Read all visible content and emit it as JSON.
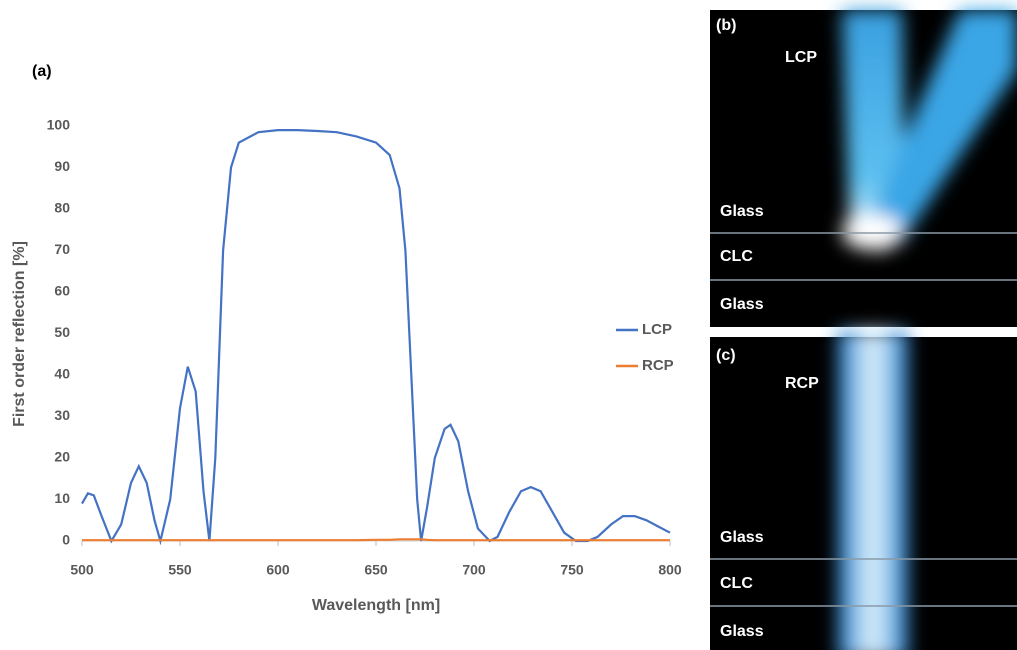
{
  "chart_data": {
    "type": "line",
    "panel_label": "(a)",
    "x_label": "Wavelength [nm]",
    "y_label": "First order reflection [%]",
    "x": [
      500,
      503,
      506,
      510,
      515,
      520,
      525,
      529,
      533,
      537,
      540,
      545,
      550,
      554,
      558,
      562,
      565,
      568,
      572,
      576,
      580,
      590,
      600,
      610,
      620,
      630,
      640,
      650,
      657,
      662,
      665,
      668,
      671,
      673,
      676,
      680,
      685,
      688,
      692,
      697,
      702,
      708,
      712,
      718,
      724,
      729,
      734,
      740,
      746,
      752,
      758,
      763,
      770,
      776,
      782,
      788,
      794,
      800
    ],
    "series": [
      {
        "name": "LCP",
        "color": "#4472c4",
        "values": [
          9,
          11.5,
          11,
          6,
          0,
          4,
          14,
          18,
          14,
          5,
          0,
          10,
          32,
          42,
          36,
          12,
          0,
          20,
          70,
          90,
          96,
          98.5,
          99,
          99,
          98.8,
          98.5,
          97.5,
          96,
          93,
          85,
          70,
          40,
          10,
          0,
          8,
          20,
          27,
          28,
          24,
          12,
          3,
          0,
          1,
          7,
          12,
          13,
          12,
          7,
          2,
          0,
          0,
          1,
          4,
          6,
          6,
          5,
          3.5,
          2
        ]
      },
      {
        "name": "RCP",
        "color": "#ed7d31",
        "values": [
          0.2,
          0.2,
          0.2,
          0.2,
          0.2,
          0.2,
          0.2,
          0.2,
          0.2,
          0.2,
          0.2,
          0.2,
          0.2,
          0.2,
          0.2,
          0.2,
          0.2,
          0.2,
          0.2,
          0.2,
          0.2,
          0.2,
          0.2,
          0.2,
          0.2,
          0.2,
          0.2,
          0.3,
          0.3,
          0.4,
          0.4,
          0.4,
          0.4,
          0.4,
          0.3,
          0.2,
          0.2,
          0.2,
          0.2,
          0.2,
          0.2,
          0.2,
          0.2,
          0.2,
          0.2,
          0.2,
          0.2,
          0.2,
          0.2,
          0.2,
          0.2,
          0.2,
          0.2,
          0.2,
          0.2,
          0.2,
          0.2,
          0.2
        ]
      }
    ],
    "xlim": [
      500,
      800
    ],
    "xticks": [
      500,
      550,
      600,
      650,
      700,
      750,
      800
    ],
    "ylim": [
      0,
      100
    ],
    "yticks": [
      0,
      10,
      20,
      30,
      40,
      50,
      60,
      70,
      80,
      90,
      100
    ],
    "grid": false,
    "legend": "right"
  },
  "panels": [
    {
      "label": "(b)",
      "polarization": "LCP",
      "layers": [
        "Glass",
        "CLC",
        "Glass"
      ]
    },
    {
      "label": "(c)",
      "polarization": "RCP",
      "layers": [
        "Glass",
        "CLC",
        "Glass"
      ]
    }
  ]
}
